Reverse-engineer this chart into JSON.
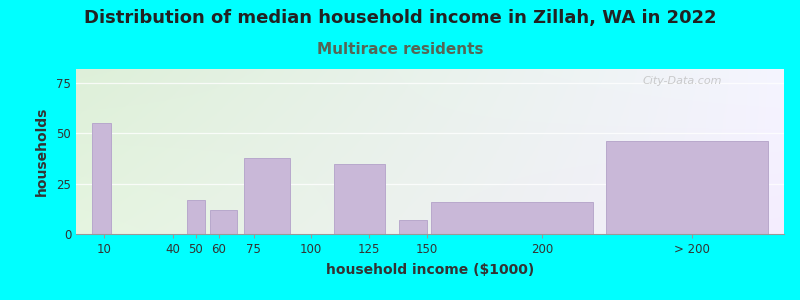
{
  "title": "Distribution of median household income in Zillah, WA in 2022",
  "subtitle": "Multirace residents",
  "xlabel": "household income ($1000)",
  "ylabel": "households",
  "bar_heights": [
    55,
    17,
    12,
    38,
    35,
    7,
    16,
    46
  ],
  "bar_lefts": [
    5,
    46,
    56,
    71,
    110,
    138,
    152,
    228
  ],
  "bar_widths": [
    8,
    8,
    12,
    20,
    22,
    12,
    70,
    70
  ],
  "bar_color": "#c9b8d8",
  "bar_edge_color": "#b8a8cc",
  "tick_positions": [
    10,
    40,
    50,
    60,
    75,
    100,
    125,
    150,
    200,
    265
  ],
  "tick_labels": [
    "10",
    "40",
    "50",
    "60",
    "75",
    "100",
    "125",
    "150",
    "200",
    "> 200"
  ],
  "ylim": [
    0,
    82
  ],
  "yticks": [
    0,
    25,
    50,
    75
  ],
  "xlim": [
    -2,
    305
  ],
  "background_outer": "#00FFFF",
  "background_top_left": "#dff0d8",
  "background_bottom_right": "#f0ecf8",
  "title_fontsize": 13,
  "subtitle_fontsize": 11,
  "subtitle_color": "#556655",
  "axis_label_fontsize": 10,
  "watermark": "City-Data.com"
}
